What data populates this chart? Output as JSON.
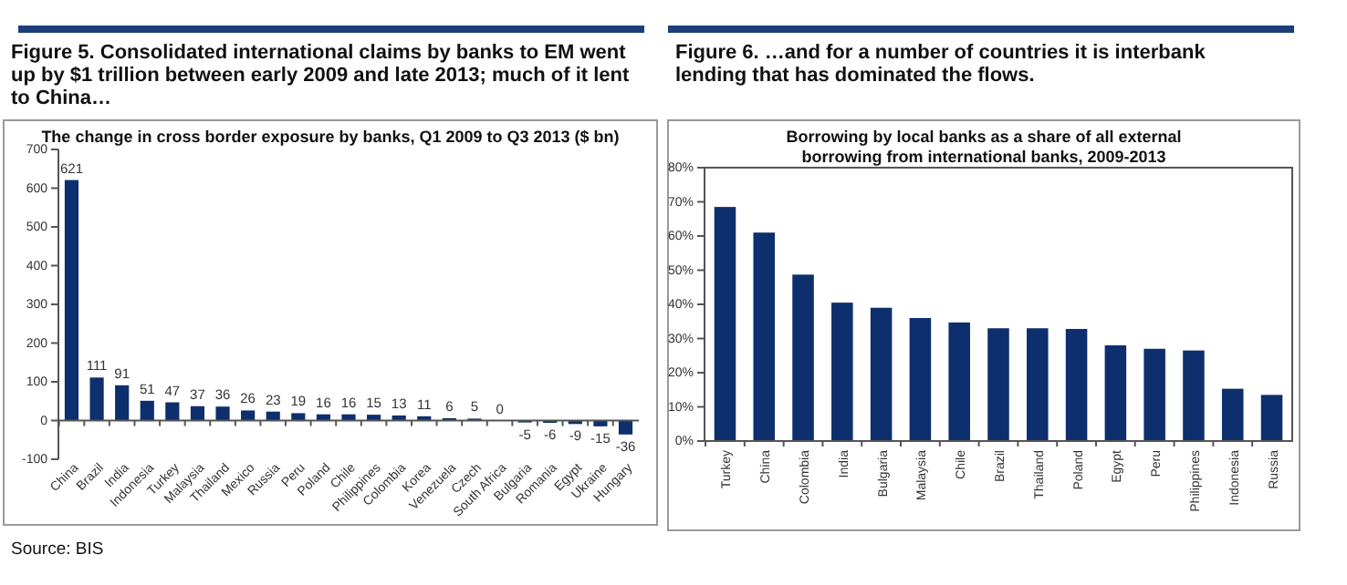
{
  "chart_data": [
    {
      "type": "bar",
      "title": "Figure 5. Consolidated international claims by banks to EM went up by $1 trillion between early 2009 and late 2013; much of it lent to China…",
      "subtitle": "The change in cross border exposure by banks, Q1 2009 to Q3 2013 ($ bn)",
      "categories": [
        "China",
        "Brazil",
        "India",
        "Indonesia",
        "Turkey",
        "Malaysia",
        "Thailand",
        "Mexico",
        "Russia",
        "Peru",
        "Poland",
        "Chile",
        "Philippines",
        "Colombia",
        "Korea",
        "Venezuela",
        "Czech",
        "South Africa",
        "Bulgaria",
        "Romania",
        "Egypt",
        "Ukraine",
        "Hungary"
      ],
      "values": [
        621,
        111,
        91,
        51,
        47,
        37,
        36,
        26,
        23,
        19,
        16,
        16,
        15,
        13,
        11,
        6,
        5,
        0,
        -5,
        -6,
        -9,
        -15,
        -36
      ],
      "color": "#0d2f6e",
      "data_labels": true,
      "ylim": [
        -100,
        700
      ],
      "yticks": [
        -100,
        0,
        100,
        200,
        300,
        400,
        500,
        600,
        700
      ],
      "annotations": [
        "Source: BIS"
      ]
    },
    {
      "type": "bar",
      "title": "Figure 6.  …and for a number of countries it is interbank lending that has dominated the flows.",
      "subtitle": "Borrowing by local banks as a share of all external borrowing from international banks, 2009-2013",
      "categories": [
        "Turkey",
        "China",
        "Colombia",
        "India",
        "Bulgaria",
        "Malaysia",
        "Chile",
        "Brazil",
        "Thailand",
        "Poland",
        "Egypt",
        "Peru",
        "Philippines",
        "Indonesia",
        "Russia"
      ],
      "values": [
        68.5,
        61,
        48.7,
        40.5,
        39,
        36,
        34.7,
        33,
        33,
        32.8,
        28,
        27,
        26.5,
        15.3,
        13.5
      ],
      "color": "#0d2f6e",
      "ylim": [
        0,
        80
      ],
      "yticks": [
        {
          "value": 0,
          "label": "0%"
        },
        {
          "value": 10,
          "label": "10%"
        },
        {
          "value": 20,
          "label": "20%"
        },
        {
          "value": 30,
          "label": "30%"
        },
        {
          "value": 40,
          "label": "40%"
        },
        {
          "value": 50,
          "label": "50%"
        },
        {
          "value": 60,
          "label": "60%"
        },
        {
          "value": 70,
          "label": "70%"
        },
        {
          "value": 80,
          "label": "80%"
        }
      ]
    }
  ]
}
